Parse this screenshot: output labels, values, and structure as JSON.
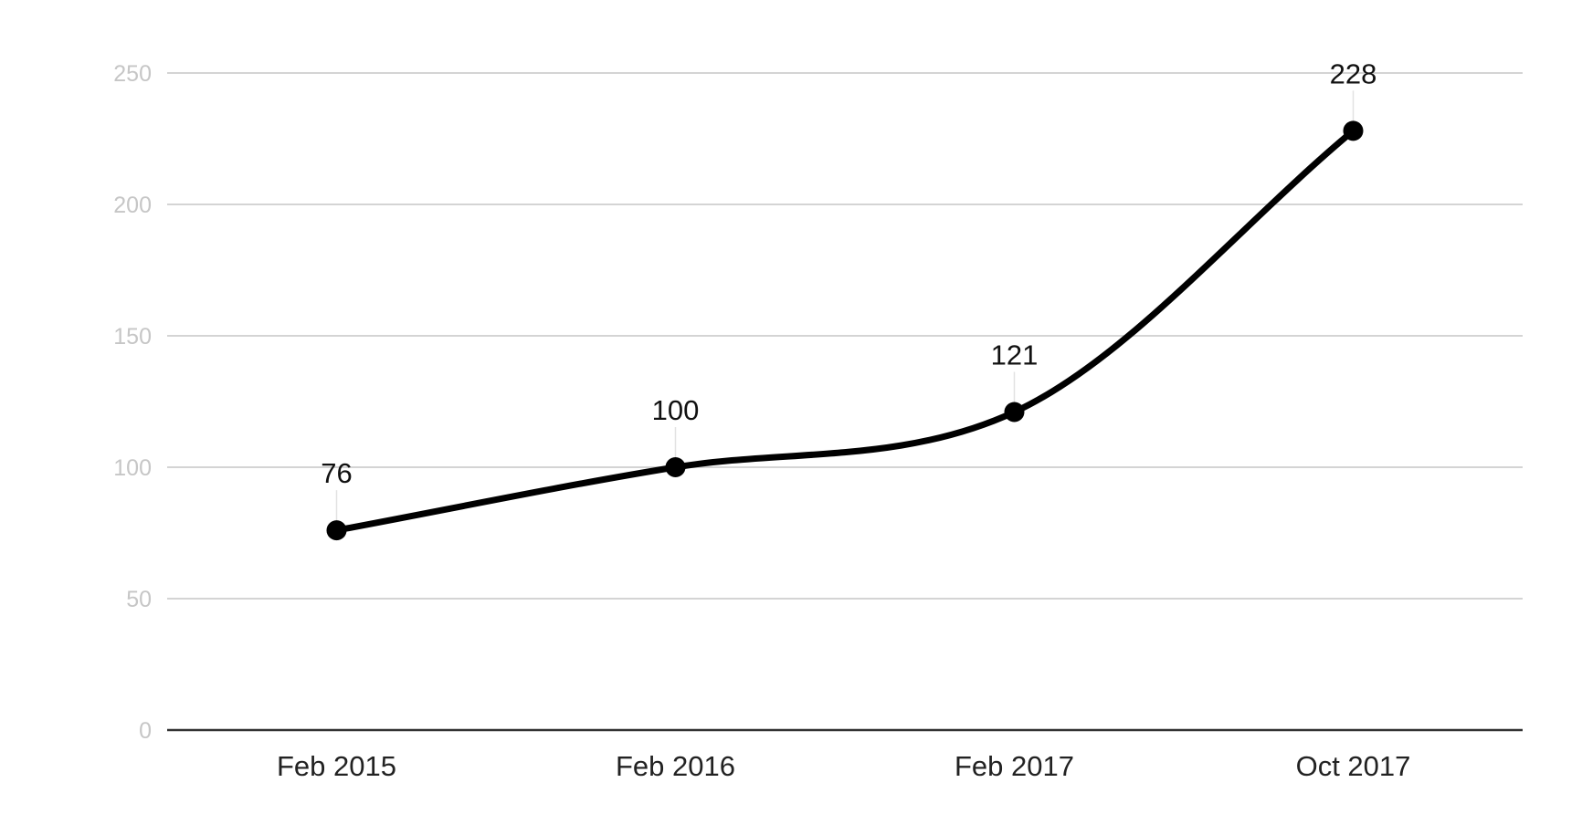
{
  "chart_data": {
    "type": "line",
    "categories": [
      "Feb 2015",
      "Feb 2016",
      "Feb 2017",
      "Oct 2017"
    ],
    "series": [
      {
        "values": [
          76,
          100,
          121,
          228
        ],
        "data_labels": [
          "76",
          "100",
          "121",
          "228"
        ]
      }
    ],
    "ylim": [
      0,
      250
    ],
    "yticks": [
      0,
      50,
      100,
      150,
      200,
      250
    ],
    "ytick_labels": [
      "0",
      "50",
      "100",
      "150",
      "200",
      "250"
    ],
    "title": "",
    "xlabel": "",
    "ylabel": "",
    "grid": true,
    "legend": "none",
    "line_style": "smooth",
    "colors": {
      "line": "#000000",
      "grid": "#d4d4d4",
      "axis": "#333333",
      "ytick_text": "#c6c6c6",
      "xtick_text": "#222222"
    }
  }
}
